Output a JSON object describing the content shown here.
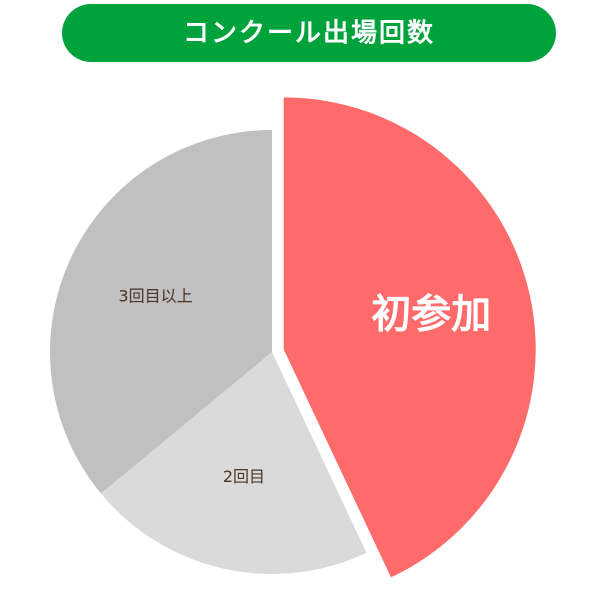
{
  "chart_data": {
    "type": "pie",
    "title": "コンクール出場回数",
    "categories": [
      "初参加",
      "2回目",
      "3回目以上"
    ],
    "values": [
      43,
      21,
      36
    ],
    "colors": [
      "#ff6b6b",
      "#dadada",
      "#c0c0c0"
    ]
  }
}
